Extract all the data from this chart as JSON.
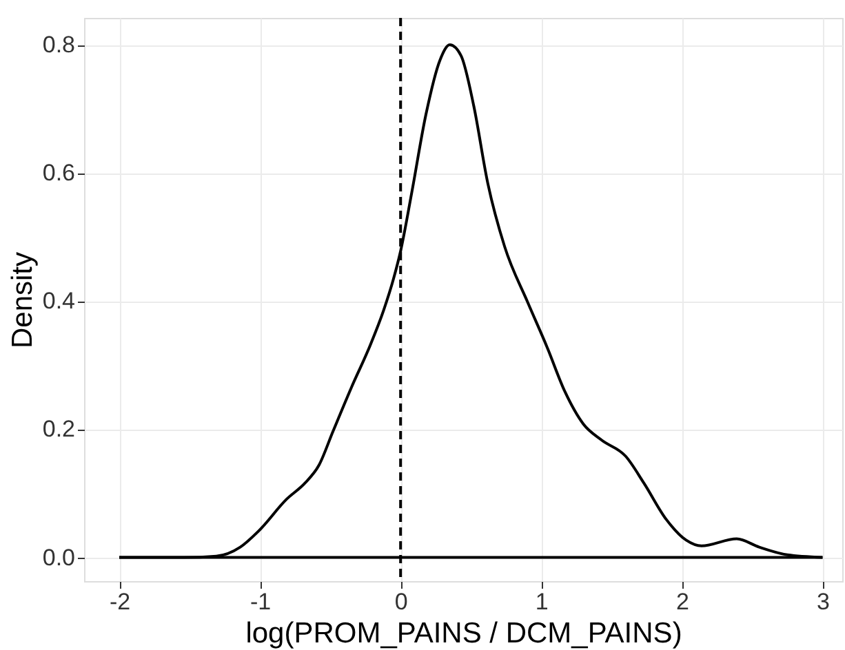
{
  "chart_data": {
    "type": "line",
    "xlabel": "log(PROM_PAINS / DCM_PAINS)",
    "ylabel": "Density",
    "series": [
      {
        "color": "#000000",
        "x": [
          -2,
          -1.54,
          -1.31,
          -1.14,
          -1.01,
          -0.81,
          -0.68,
          -0.58,
          -0.48,
          -0.35,
          -0.22,
          -0.12,
          -0.05,
          0,
          0.08,
          0.18,
          0.28,
          0.35,
          0.43,
          0.52,
          0.62,
          0.74,
          0.9,
          1.04,
          1.17,
          1.3,
          1.43,
          1.6,
          1.73,
          1.89,
          2.03,
          2.14,
          2.39,
          2.55,
          2.75,
          3
        ],
        "values": [
          0,
          0,
          0.002,
          0.016,
          0.041,
          0.091,
          0.116,
          0.144,
          0.197,
          0.265,
          0.329,
          0.386,
          0.435,
          0.478,
          0.57,
          0.691,
          0.776,
          0.8,
          0.783,
          0.705,
          0.584,
          0.485,
          0.4,
          0.329,
          0.258,
          0.208,
          0.183,
          0.158,
          0.116,
          0.059,
          0.027,
          0.018,
          0.029,
          0.016,
          0.004,
          0
        ]
      }
    ],
    "ref_lines": [
      {
        "axis": "x",
        "value": 0,
        "line_style": "dashed",
        "color": "#000000"
      },
      {
        "axis": "y",
        "value": 0,
        "line_style": "solid",
        "color": "#000000"
      }
    ],
    "xlim": [
      -2.25,
      3.14
    ],
    "ylim": [
      -0.037,
      0.842
    ],
    "xticks": [
      -2,
      -1,
      0,
      1,
      2,
      3
    ],
    "yticks": [
      {
        "value": 0,
        "label": "0.0"
      },
      0.2,
      0.4,
      0.6,
      0.8
    ],
    "grid": true,
    "line_style": "solid",
    "marker": "none"
  }
}
